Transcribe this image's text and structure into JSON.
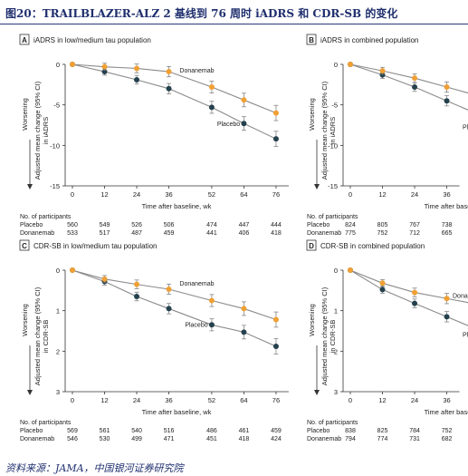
{
  "figure_title": "图20：TRAILBLAZER-ALZ 2 基线到 76 周时 iADRS 和 CDR-SB 的变化",
  "source": "资料来源：JAMA，中国银河证券研究院",
  "colors": {
    "placebo": "#24414d",
    "donanemab": "#f0a034",
    "title": "#1f2f6e"
  },
  "chart_data": [
    {
      "type": "line",
      "panel_letter": "A",
      "title": "iADRS in low/medium tau population",
      "xlabel": "Time after baseline, wk",
      "ylabel": [
        "Adjusted mean change (95% CI)",
        "in iADRS"
      ],
      "arrow_label": "Worsening",
      "x": [
        0,
        12,
        24,
        36,
        52,
        64,
        76
      ],
      "x_ticks": [
        0,
        12,
        24,
        36,
        52,
        64,
        76
      ],
      "ylim": [
        -15,
        0
      ],
      "y_ticks": [
        0,
        -5,
        -10,
        -15
      ],
      "series": [
        {
          "name": "Placebo",
          "values": [
            0,
            -0.9,
            -1.9,
            -3.0,
            -5.3,
            -7.3,
            -9.2
          ]
        },
        {
          "name": "Donanemab",
          "values": [
            0,
            -0.3,
            -0.5,
            -0.9,
            -2.8,
            -4.4,
            -6.0
          ]
        }
      ],
      "participants": {
        "header": "No. of participants",
        "rows": [
          {
            "name": "Placebo",
            "values": [
              "560",
              "549",
              "526",
              "506",
              "474",
              "447",
              "444"
            ]
          },
          {
            "name": "Donanemab",
            "values": [
              "533",
              "517",
              "487",
              "459",
              "441",
              "406",
              "418"
            ]
          }
        ]
      }
    },
    {
      "type": "line",
      "panel_letter": "B",
      "title": "iADRS in combined population",
      "xlabel": "Time after baseline, wk",
      "ylabel": [
        "Adjusted mean change (95% CI)",
        "in iADRS"
      ],
      "arrow_label": "Worsening",
      "x": [
        0,
        12,
        24,
        36
      ],
      "x_ticks": [
        0,
        12,
        24,
        36
      ],
      "ylim": [
        -15,
        0
      ],
      "y_ticks": [
        0,
        -5,
        -10,
        -15
      ],
      "series": [
        {
          "name": "Placebo",
          "values": [
            0,
            -1.3,
            -2.8,
            -4.5
          ]
        },
        {
          "name": "Donanemab",
          "values": [
            0,
            -0.8,
            -1.7,
            -2.8
          ]
        }
      ],
      "partial_series_label": "Pl",
      "participants": {
        "header": "No. of participants",
        "rows": [
          {
            "name": "Placebo",
            "values": [
              "824",
              "805",
              "767",
              "738"
            ]
          },
          {
            "name": "Donanemab",
            "values": [
              "775",
              "752",
              "712",
              "665"
            ]
          }
        ]
      }
    },
    {
      "type": "line",
      "panel_letter": "C",
      "title": "CDR-SB in low/medium tau population",
      "xlabel": "Time after baseline, wk",
      "ylabel": [
        "Adjusted mean change (95% CI)",
        "in CDR-SB"
      ],
      "arrow_label": "Worsening",
      "x": [
        0,
        12,
        24,
        36,
        52,
        64,
        76
      ],
      "x_ticks": [
        0,
        12,
        24,
        36,
        52,
        64,
        76
      ],
      "ylim": [
        0,
        3
      ],
      "y_ticks": [
        0,
        1,
        2,
        3
      ],
      "series": [
        {
          "name": "Placebo",
          "values": [
            0,
            0.28,
            0.65,
            0.95,
            1.35,
            1.53,
            1.88
          ]
        },
        {
          "name": "Donanemab",
          "values": [
            0,
            0.22,
            0.35,
            0.47,
            0.75,
            0.95,
            1.22
          ]
        }
      ],
      "participants": {
        "header": "No. of participants",
        "rows": [
          {
            "name": "Placebo",
            "values": [
              "569",
              "561",
              "540",
              "516",
              "486",
              "461",
              "459"
            ]
          },
          {
            "name": "Donanemab",
            "values": [
              "546",
              "530",
              "499",
              "471",
              "451",
              "418",
              "424"
            ]
          }
        ]
      }
    },
    {
      "type": "line",
      "panel_letter": "D",
      "title": "CDR-SB in combined population",
      "xlabel": "Time after baseline, wk",
      "ylabel": [
        "Adjusted mean change (95% CI)",
        "in CDR-SB"
      ],
      "arrow_label": "Worsening",
      "x": [
        0,
        12,
        24,
        36
      ],
      "x_ticks": [
        0,
        12,
        24,
        36
      ],
      "ylim": [
        0,
        3
      ],
      "y_ticks": [
        0,
        1,
        2,
        3
      ],
      "series": [
        {
          "name": "Placebo",
          "values": [
            0,
            0.48,
            0.82,
            1.15
          ]
        },
        {
          "name": "Donanemab",
          "values": [
            0,
            0.32,
            0.55,
            0.7
          ]
        }
      ],
      "partial_series_label": "Pl",
      "partial_donanemab_label": "Dona",
      "participants": {
        "header": "No. of participants",
        "rows": [
          {
            "name": "Placebo",
            "values": [
              "838",
              "825",
              "784",
              "752"
            ]
          },
          {
            "name": "Donanemab",
            "values": [
              "794",
              "774",
              "731",
              "682"
            ]
          }
        ]
      }
    }
  ]
}
